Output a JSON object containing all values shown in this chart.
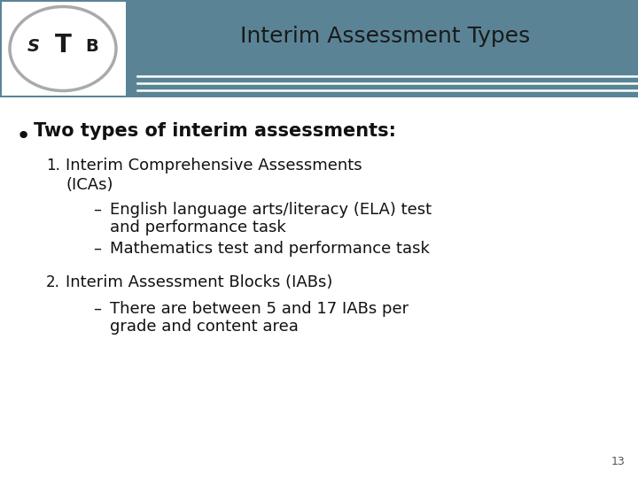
{
  "title": "Interim Assessment Types",
  "title_color": "#1a1a1a",
  "header_bg_color": "#5a8496",
  "header_line_color": "#ffffff",
  "slide_bg_color": "#dce6ea",
  "content_bg_color": "#ffffff",
  "bullet_main": "Two types of interim assessments:",
  "item1_text_line1": "Interim Comprehensive Assessments",
  "item1_text_line2": "(ICAs)",
  "item1_sub1_line1": "English language arts/literacy (ELA) test",
  "item1_sub1_line2": "and performance task",
  "item1_sub2": "Mathematics test and performance task",
  "item2_text": "Interim Assessment Blocks (IABs)",
  "item2_sub1_line1": "There are between 5 and 17 IABs per",
  "item2_sub1_line2": "grade and content area",
  "page_number": "13",
  "title_fontsize": 18,
  "main_bullet_fontsize": 15,
  "numbered_fontsize": 13,
  "sub_bullet_fontsize": 13,
  "page_num_fontsize": 9
}
